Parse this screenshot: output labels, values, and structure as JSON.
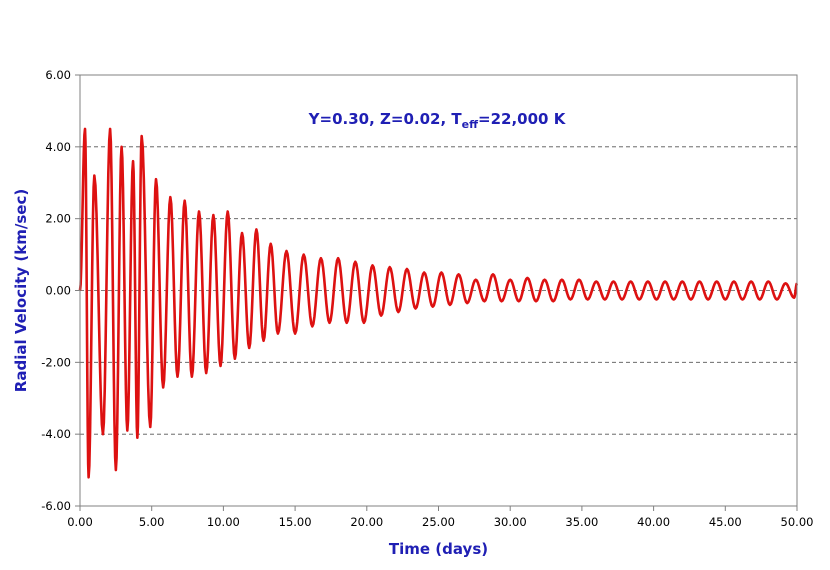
{
  "chart_data": {
    "type": "line",
    "title": "",
    "xlabel": "Time (days)",
    "ylabel": "Radial Velocity (km/sec)",
    "xlim": [
      0,
      50
    ],
    "ylim": [
      -6,
      6
    ],
    "x_ticks": [
      "0.00",
      "5.00",
      "10.00",
      "15.00",
      "20.00",
      "25.00",
      "30.00",
      "35.00",
      "40.00",
      "45.00",
      "50.00"
    ],
    "y_ticks": [
      "6.00",
      "4.00",
      "2.00",
      "0.00",
      "-2.00",
      "-4.00",
      "-6.00"
    ],
    "y_tick_values": [
      6,
      4,
      2,
      0,
      -2,
      -4,
      -6
    ],
    "x_tick_values": [
      0,
      5,
      10,
      15,
      20,
      25,
      30,
      35,
      40,
      45,
      50
    ],
    "grid": "horizontal dashed",
    "annotation": {
      "prefix": "Y=0.30, Z=0.02, T",
      "subscript": "eff",
      "suffix": "=22,000 K"
    },
    "series": [
      {
        "color": "#dd1111",
        "peaks": [
          {
            "x": 0.35,
            "y": 4.5
          },
          {
            "x": 0.6,
            "y": -5.2
          },
          {
            "x": 1.0,
            "y": 3.2
          },
          {
            "x": 1.6,
            "y": -4.0
          },
          {
            "x": 2.1,
            "y": 4.5
          },
          {
            "x": 2.5,
            "y": -5.0
          },
          {
            "x": 2.9,
            "y": 4.0
          },
          {
            "x": 3.3,
            "y": -3.9
          },
          {
            "x": 3.7,
            "y": 3.6
          },
          {
            "x": 4.0,
            "y": -4.1
          },
          {
            "x": 4.3,
            "y": 4.3
          },
          {
            "x": 4.9,
            "y": -3.8
          },
          {
            "x": 5.3,
            "y": 3.1
          },
          {
            "x": 5.8,
            "y": -2.7
          },
          {
            "x": 6.3,
            "y": 2.6
          },
          {
            "x": 6.8,
            "y": -2.4
          },
          {
            "x": 7.3,
            "y": 2.5
          },
          {
            "x": 7.8,
            "y": -2.4
          },
          {
            "x": 8.3,
            "y": 2.2
          },
          {
            "x": 8.8,
            "y": -2.3
          },
          {
            "x": 9.3,
            "y": 2.1
          },
          {
            "x": 9.8,
            "y": -2.1
          },
          {
            "x": 10.3,
            "y": 2.2
          },
          {
            "x": 10.8,
            "y": -1.9
          },
          {
            "x": 11.3,
            "y": 1.6
          },
          {
            "x": 11.8,
            "y": -1.6
          },
          {
            "x": 12.3,
            "y": 1.7
          },
          {
            "x": 12.8,
            "y": -1.4
          },
          {
            "x": 13.3,
            "y": 1.3
          },
          {
            "x": 13.8,
            "y": -1.2
          },
          {
            "x": 14.4,
            "y": 1.1
          },
          {
            "x": 15.0,
            "y": -1.2
          },
          {
            "x": 15.6,
            "y": 1.0
          },
          {
            "x": 16.2,
            "y": -1.0
          },
          {
            "x": 16.8,
            "y": 0.9
          },
          {
            "x": 17.4,
            "y": -0.9
          },
          {
            "x": 18.0,
            "y": 0.9
          },
          {
            "x": 18.6,
            "y": -0.9
          },
          {
            "x": 19.2,
            "y": 0.8
          },
          {
            "x": 19.8,
            "y": -0.9
          },
          {
            "x": 20.4,
            "y": 0.7
          },
          {
            "x": 21.0,
            "y": -0.7
          },
          {
            "x": 21.6,
            "y": 0.65
          },
          {
            "x": 22.2,
            "y": -0.6
          },
          {
            "x": 22.8,
            "y": 0.6
          },
          {
            "x": 23.4,
            "y": -0.5
          },
          {
            "x": 24.0,
            "y": 0.5
          },
          {
            "x": 24.6,
            "y": -0.45
          },
          {
            "x": 25.2,
            "y": 0.5
          },
          {
            "x": 25.8,
            "y": -0.4
          },
          {
            "x": 26.4,
            "y": 0.45
          },
          {
            "x": 27.0,
            "y": -0.35
          },
          {
            "x": 27.6,
            "y": 0.3
          },
          {
            "x": 28.2,
            "y": -0.3
          },
          {
            "x": 28.8,
            "y": 0.45
          },
          {
            "x": 29.4,
            "y": -0.3
          },
          {
            "x": 30.0,
            "y": 0.3
          },
          {
            "x": 30.6,
            "y": -0.3
          },
          {
            "x": 31.2,
            "y": 0.35
          },
          {
            "x": 31.8,
            "y": -0.3
          },
          {
            "x": 32.4,
            "y": 0.3
          },
          {
            "x": 33.0,
            "y": -0.3
          },
          {
            "x": 33.6,
            "y": 0.3
          },
          {
            "x": 34.2,
            "y": -0.25
          },
          {
            "x": 34.8,
            "y": 0.3
          },
          {
            "x": 35.4,
            "y": -0.25
          },
          {
            "x": 36.0,
            "y": 0.25
          },
          {
            "x": 36.6,
            "y": -0.25
          },
          {
            "x": 37.2,
            "y": 0.25
          },
          {
            "x": 37.8,
            "y": -0.25
          },
          {
            "x": 38.4,
            "y": 0.25
          },
          {
            "x": 39.0,
            "y": -0.25
          },
          {
            "x": 39.6,
            "y": 0.25
          },
          {
            "x": 40.2,
            "y": -0.25
          },
          {
            "x": 40.8,
            "y": 0.25
          },
          {
            "x": 41.4,
            "y": -0.25
          },
          {
            "x": 42.0,
            "y": 0.25
          },
          {
            "x": 42.6,
            "y": -0.25
          },
          {
            "x": 43.2,
            "y": 0.25
          },
          {
            "x": 43.8,
            "y": -0.25
          },
          {
            "x": 44.4,
            "y": 0.25
          },
          {
            "x": 45.0,
            "y": -0.25
          },
          {
            "x": 45.6,
            "y": 0.25
          },
          {
            "x": 46.2,
            "y": -0.25
          },
          {
            "x": 46.8,
            "y": 0.25
          },
          {
            "x": 47.4,
            "y": -0.25
          },
          {
            "x": 48.0,
            "y": 0.25
          },
          {
            "x": 48.6,
            "y": -0.25
          },
          {
            "x": 49.2,
            "y": 0.2
          },
          {
            "x": 49.8,
            "y": -0.2
          },
          {
            "x": 50.0,
            "y": 0.2
          }
        ]
      }
    ]
  }
}
